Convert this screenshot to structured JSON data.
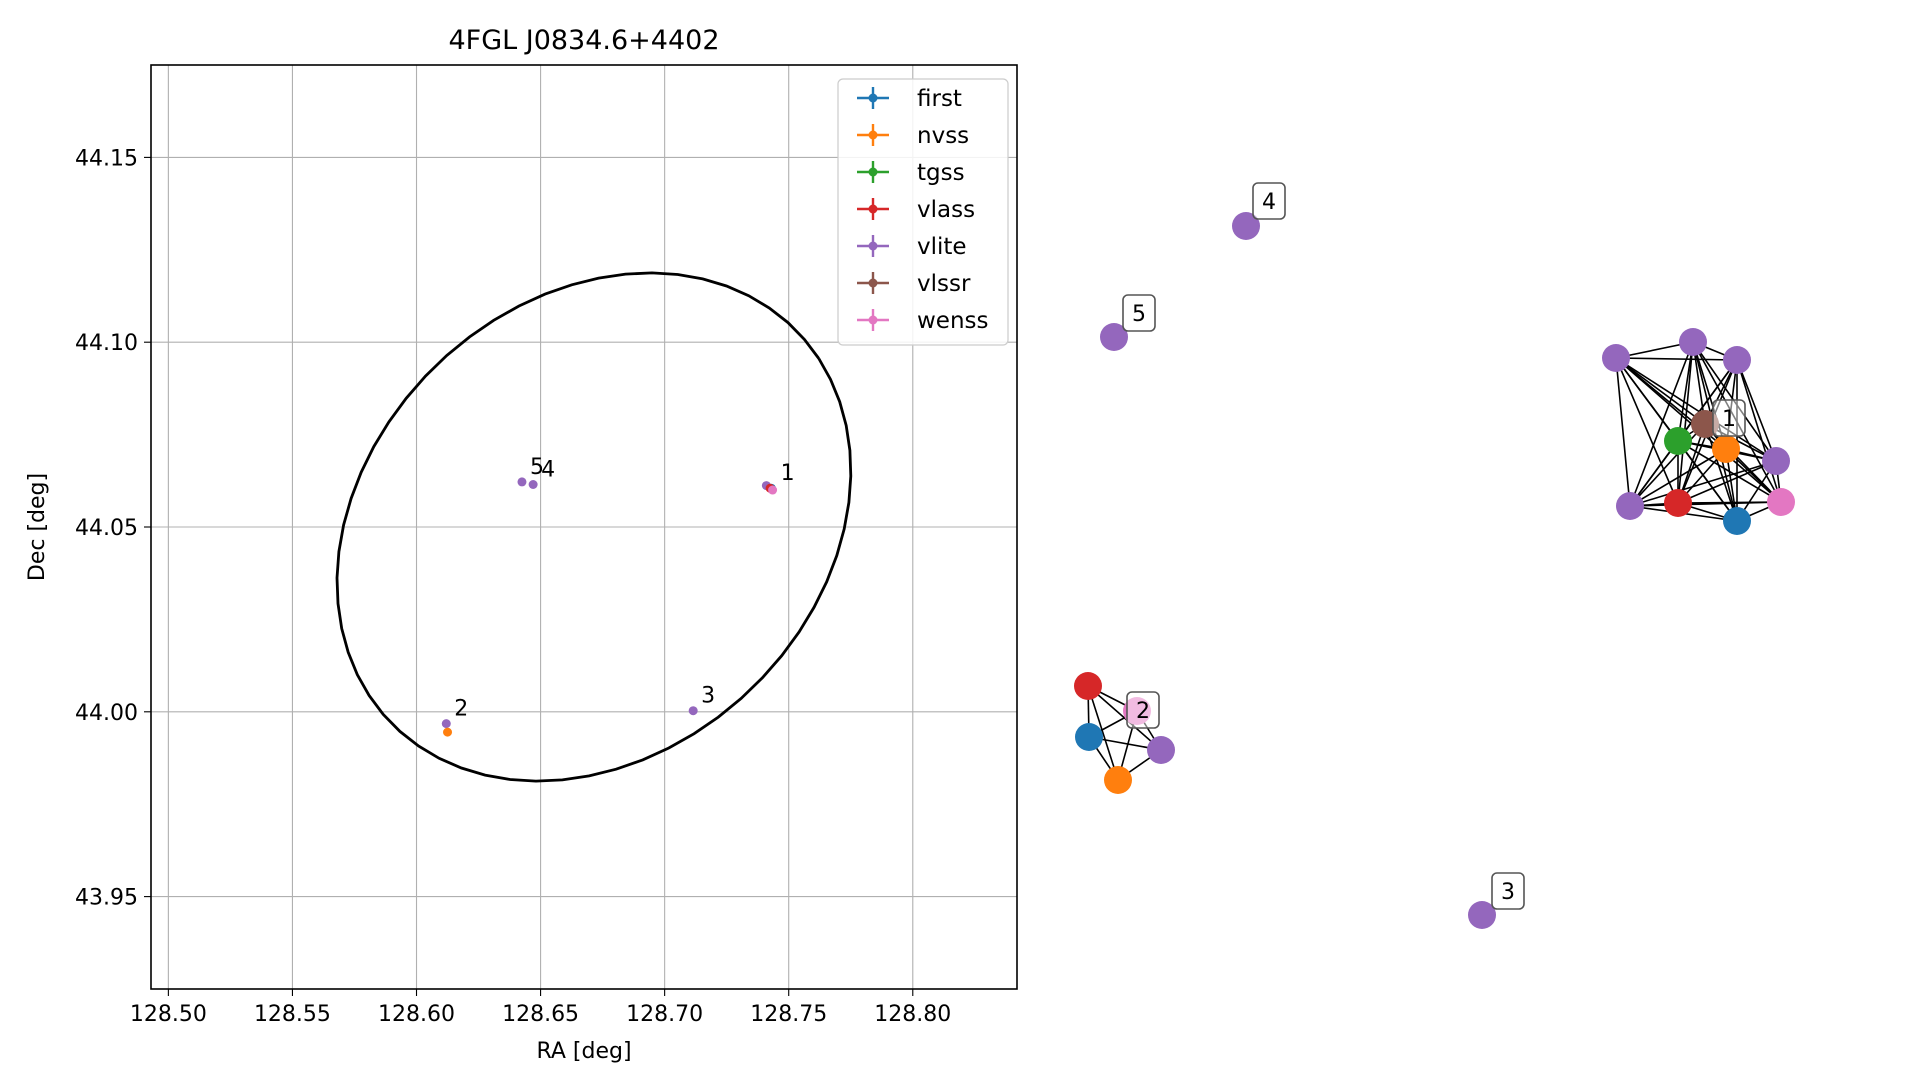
{
  "chart_data": [
    {
      "type": "scatter",
      "title": "4FGL J0834.6+4402",
      "xlabel": "RA [deg]",
      "ylabel": "Dec [deg]",
      "xlim": [
        128.493,
        128.842
      ],
      "ylim": [
        43.925,
        44.175
      ],
      "xticks": [
        128.5,
        128.55,
        128.6,
        128.65,
        128.7,
        128.75,
        128.8
      ],
      "xtick_labels": [
        "128.50",
        "128.55",
        "128.60",
        "128.65",
        "128.70",
        "128.75",
        "128.80"
      ],
      "yticks": [
        43.95,
        44.0,
        44.05,
        44.1,
        44.15
      ],
      "ytick_labels": [
        "43.95",
        "44.00",
        "44.05",
        "44.10",
        "44.15"
      ],
      "grid": true,
      "legend_position": "top-right",
      "series": [
        {
          "name": "first",
          "color": "#1f77b4",
          "points": [
            {
              "x": 128.743,
              "y": 44.0605
            }
          ]
        },
        {
          "name": "nvss",
          "color": "#ff7f0e",
          "points": [
            {
              "x": 128.6125,
              "y": 43.9945
            }
          ]
        },
        {
          "name": "tgss",
          "color": "#2ca02c",
          "points": []
        },
        {
          "name": "vlass",
          "color": "#d62728",
          "points": [
            {
              "x": 128.7425,
              "y": 44.0605
            }
          ]
        },
        {
          "name": "vlite",
          "color": "#9467bd",
          "points": [
            {
              "x": 128.741,
              "y": 44.0612
            },
            {
              "x": 128.612,
              "y": 43.9968
            },
            {
              "x": 128.7115,
              "y": 44.0003
            },
            {
              "x": 128.647,
              "y": 44.0615
            },
            {
              "x": 128.6425,
              "y": 44.0622
            }
          ]
        },
        {
          "name": "vlssr",
          "color": "#8c564b",
          "points": []
        },
        {
          "name": "wenss",
          "color": "#e377c2",
          "points": [
            {
              "x": 128.7435,
              "y": 44.06
            }
          ]
        }
      ],
      "point_labels": [
        {
          "text": "1",
          "x": 128.7435,
          "y": 44.0606
        },
        {
          "text": "2",
          "x": 128.612,
          "y": 43.9968
        },
        {
          "text": "3",
          "x": 128.7115,
          "y": 44.0003
        },
        {
          "text": "4",
          "x": 128.647,
          "y": 44.0615
        },
        {
          "text": "5",
          "x": 128.6425,
          "y": 44.0622
        }
      ],
      "ellipse": {
        "center_ra": 128.6715,
        "center_dec": 44.05,
        "semi_major_deg": 0.0795,
        "semi_minor_deg": 0.0628,
        "position_angle_deg": 35
      }
    },
    {
      "type": "network",
      "groups": [
        {
          "label": "1",
          "nodes": [
            "vlite",
            "vlite",
            "vlite",
            "vlssr",
            "first",
            "nvss",
            "tgss",
            "vlass",
            "vlite",
            "vlite",
            "wenss"
          ]
        },
        {
          "label": "2",
          "nodes": [
            "vlass",
            "wenss",
            "first",
            "nvss",
            "vlite"
          ]
        },
        {
          "label": "3",
          "nodes": [
            "vlite"
          ]
        },
        {
          "label": "4",
          "nodes": [
            "vlite"
          ]
        },
        {
          "label": "5",
          "nodes": [
            "vlite"
          ]
        }
      ]
    }
  ]
}
